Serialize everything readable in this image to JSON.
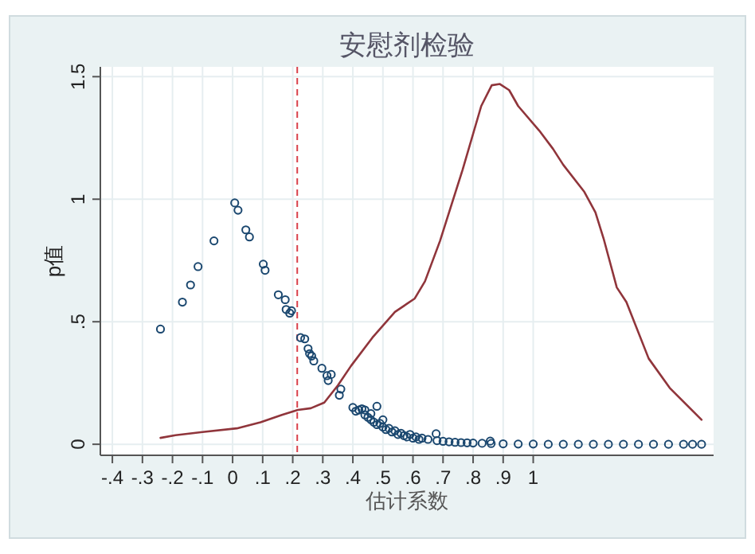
{
  "chart_data": {
    "type": "scatter",
    "title": "安慰剂检验",
    "xlabel": "估计系数",
    "ylabel": "p值",
    "xlim": [
      -0.44,
      1.6
    ],
    "ylim": [
      -0.045,
      1.54
    ],
    "xticks": [
      {
        "value": -0.4,
        "label": "-.4"
      },
      {
        "value": -0.3,
        "label": "-.3"
      },
      {
        "value": -0.2,
        "label": "-.2"
      },
      {
        "value": -0.1,
        "label": "-.1"
      },
      0,
      {
        "value": 0.1,
        "label": ".1"
      },
      {
        "value": 0.2,
        "label": ".2"
      },
      {
        "value": 0.3,
        "label": ".3"
      },
      {
        "value": 0.4,
        "label": ".4"
      },
      {
        "value": 0.5,
        "label": ".5"
      },
      {
        "value": 0.6,
        "label": ".6"
      },
      {
        "value": 0.7,
        "label": ".7"
      },
      {
        "value": 0.8,
        "label": ".8"
      },
      {
        "value": 0.9,
        "label": ".9"
      },
      1
    ],
    "yticks": [
      0,
      {
        "value": 0.5,
        "label": ".5"
      },
      1,
      1.5
    ],
    "grid": true,
    "ref_lines": [
      {
        "axis": "x",
        "value": 0.215,
        "color": "#d9404a",
        "line_style": "dashed"
      }
    ],
    "series": [
      {
        "marker": "circle",
        "color": "#1a476f",
        "x": [
          -0.24,
          -0.167,
          -0.14,
          -0.115,
          -0.062,
          0.007,
          0.018,
          0.044,
          0.056,
          0.102,
          0.108,
          0.152,
          0.175,
          0.178,
          0.19,
          0.196,
          0.226,
          0.24,
          0.251,
          0.256,
          0.263,
          0.27,
          0.297,
          0.314,
          0.318,
          0.328,
          0.355,
          0.36,
          0.4,
          0.41,
          0.42,
          0.43,
          0.44,
          0.44,
          0.45,
          0.46,
          0.46,
          0.47,
          0.48,
          0.48,
          0.49,
          0.5,
          0.5,
          0.51,
          0.52,
          0.53,
          0.54,
          0.55,
          0.56,
          0.57,
          0.58,
          0.59,
          0.6,
          0.61,
          0.62,
          0.63,
          0.65,
          0.677,
          0.68,
          0.7,
          0.72,
          0.74,
          0.76,
          0.78,
          0.8,
          0.83,
          0.857,
          0.86,
          0.9,
          0.95,
          1.0,
          1.05,
          1.1,
          1.15,
          1.2,
          1.25,
          1.3,
          1.35,
          1.4,
          1.45,
          1.5,
          1.53,
          1.56
        ],
        "values": [
          0.47,
          0.58,
          0.65,
          0.725,
          0.83,
          0.985,
          0.955,
          0.875,
          0.846,
          0.735,
          0.71,
          0.61,
          0.59,
          0.55,
          0.535,
          0.545,
          0.435,
          0.43,
          0.39,
          0.37,
          0.36,
          0.34,
          0.31,
          0.28,
          0.26,
          0.285,
          0.2,
          0.225,
          0.15,
          0.135,
          0.14,
          0.145,
          0.12,
          0.14,
          0.11,
          0.1,
          0.125,
          0.09,
          0.155,
          0.08,
          0.085,
          0.07,
          0.1,
          0.06,
          0.065,
          0.05,
          0.055,
          0.04,
          0.045,
          0.035,
          0.03,
          0.04,
          0.025,
          0.03,
          0.02,
          0.025,
          0.02,
          0.043,
          0.015,
          0.012,
          0.01,
          0.008,
          0.007,
          0.006,
          0.005,
          0.004,
          0.013,
          0.003,
          0.002,
          0.001,
          0.001,
          0,
          0,
          0,
          0,
          0,
          0,
          0,
          0,
          0,
          0,
          0,
          0
        ]
      },
      {
        "type": "line",
        "color": "#90353b",
        "x": [
          -0.24,
          -0.19,
          -0.1,
          0.014,
          0.093,
          0.164,
          0.217,
          0.26,
          0.305,
          0.35,
          0.394,
          0.465,
          0.54,
          0.606,
          0.64,
          0.69,
          0.765,
          0.827,
          0.862,
          0.889,
          0.92,
          0.95,
          1.02,
          1.066,
          1.1,
          1.17,
          1.207,
          1.234,
          1.278,
          1.31,
          1.384,
          1.454,
          1.56
        ],
        "values": [
          0.026,
          0.037,
          0.05,
          0.065,
          0.09,
          0.12,
          0.14,
          0.147,
          0.17,
          0.24,
          0.32,
          0.435,
          0.54,
          0.595,
          0.665,
          0.83,
          1.12,
          1.38,
          1.465,
          1.47,
          1.445,
          1.38,
          1.28,
          1.205,
          1.14,
          1.03,
          0.946,
          0.84,
          0.64,
          0.58,
          0.35,
          0.23,
          0.1
        ]
      }
    ]
  }
}
